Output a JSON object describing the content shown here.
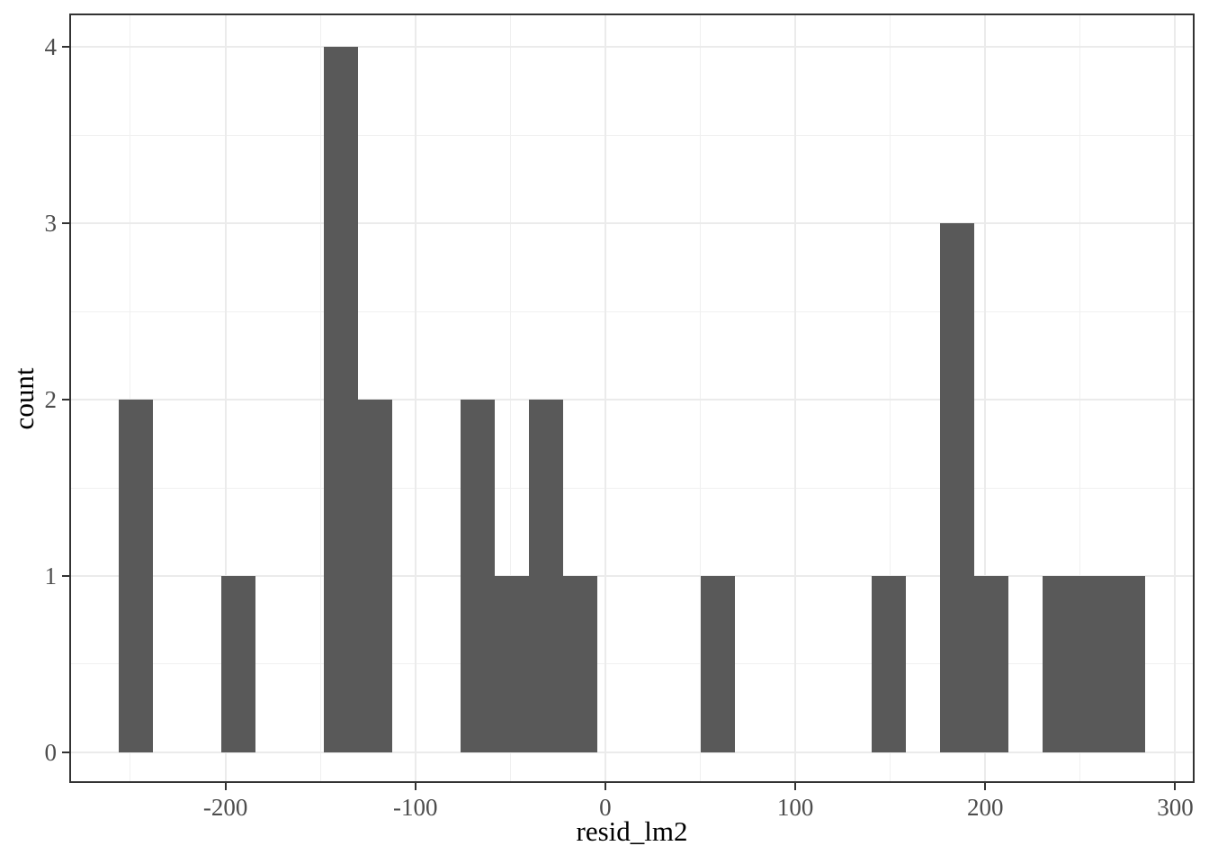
{
  "chart_data": {
    "type": "bar",
    "subtype": "histogram",
    "title": "",
    "xlabel": "resid_lm2",
    "ylabel": "count",
    "legend": "none",
    "grid": "on",
    "binwidth": 18,
    "xlim": [
      -282.2,
      310.2
    ],
    "ylim": [
      -0.174,
      4.19
    ],
    "x_tick_values": [
      -200,
      -100,
      0,
      100,
      200,
      300
    ],
    "x_tick_labels": [
      "-200",
      "-100",
      "0",
      "100",
      "200",
      "300"
    ],
    "x_minor_values": [
      -250,
      -150,
      -50,
      50,
      150,
      250
    ],
    "y_tick_values": [
      0,
      1,
      2,
      3,
      4
    ],
    "y_tick_labels": [
      "0",
      "1",
      "2",
      "3",
      "4"
    ],
    "y_minor_values": [
      0.5,
      1.5,
      2.5,
      3.5
    ],
    "bins": [
      {
        "x0": -256,
        "x1": -238,
        "count": 2
      },
      {
        "x0": -202,
        "x1": -184,
        "count": 1
      },
      {
        "x0": -148,
        "x1": -130,
        "count": 4
      },
      {
        "x0": -130,
        "x1": -112,
        "count": 2
      },
      {
        "x0": -76,
        "x1": -58,
        "count": 2
      },
      {
        "x0": -58,
        "x1": -40,
        "count": 1
      },
      {
        "x0": -40,
        "x1": -22,
        "count": 2
      },
      {
        "x0": -22,
        "x1": -4,
        "count": 1
      },
      {
        "x0": 50,
        "x1": 68,
        "count": 1
      },
      {
        "x0": 140,
        "x1": 158,
        "count": 1
      },
      {
        "x0": 176,
        "x1": 194,
        "count": 3
      },
      {
        "x0": 194,
        "x1": 212,
        "count": 1
      },
      {
        "x0": 230,
        "x1": 248,
        "count": 1
      },
      {
        "x0": 248,
        "x1": 266,
        "count": 1
      },
      {
        "x0": 266,
        "x1": 284,
        "count": 1
      }
    ],
    "colors": {
      "bar_fill": "#595959",
      "panel_border": "#333333",
      "grid_major": "#ebebeb",
      "grid_minor": "#f0f0f0",
      "tick_mark": "#333333",
      "tick_label": "#4d4d4d",
      "axis_title": "#000000",
      "background": "#ffffff"
    }
  }
}
